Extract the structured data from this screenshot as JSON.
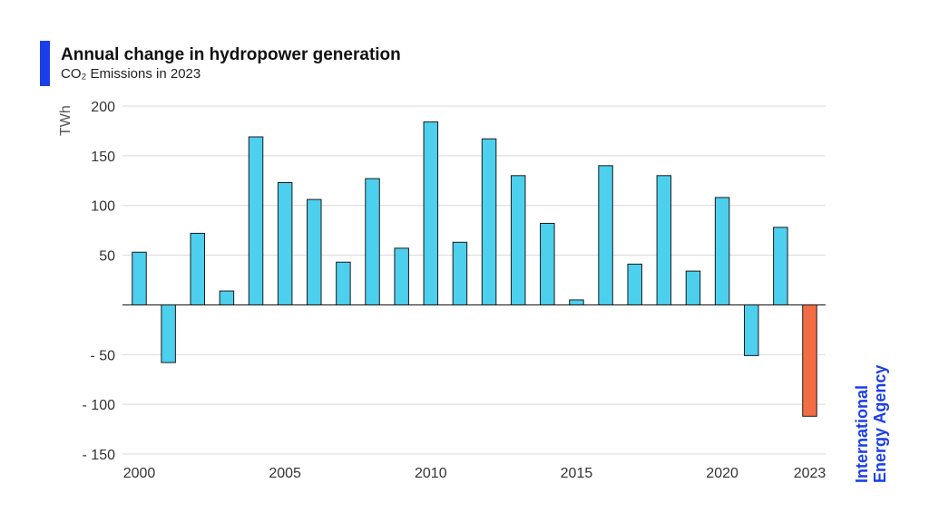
{
  "header": {
    "title": "Annual change in hydropower generation",
    "subtitle": "CO₂ Emissions in 2023"
  },
  "logo": {
    "line1": "International",
    "line2": "Energy Agency"
  },
  "colors": {
    "accent": "#1a3ee8",
    "bar": "#4dcfee",
    "highlight": "#f26d45",
    "bar_outline": "#1a1a1a",
    "grid": "#d9d9d9"
  },
  "chart_data": {
    "type": "bar",
    "title": "Annual change in hydropower generation",
    "subtitle": "CO₂ Emissions in 2023",
    "ylabel": "TWh",
    "xlabel": "",
    "ylim": [
      -150,
      200
    ],
    "yticks": [
      200,
      150,
      100,
      50,
      -50,
      -100,
      -150
    ],
    "ytick_labels": [
      "200",
      "150",
      "100",
      "50",
      "- 50",
      "- 100",
      "- 150"
    ],
    "xtick_labels": [
      "2000",
      "2005",
      "2010",
      "2015",
      "2020",
      "2023"
    ],
    "xtick_years": [
      2000,
      2005,
      2010,
      2015,
      2020,
      2023
    ],
    "grid": true,
    "highlight_category": "2023",
    "categories": [
      "2000",
      "2001",
      "2002",
      "2003",
      "2004",
      "2005",
      "2006",
      "2007",
      "2008",
      "2009",
      "2010",
      "2011",
      "2012",
      "2013",
      "2014",
      "2015",
      "2016",
      "2017",
      "2018",
      "2019",
      "2020",
      "2021",
      "2022",
      "2023"
    ],
    "values": [
      53,
      -58,
      72,
      14,
      169,
      123,
      106,
      43,
      127,
      57,
      184,
      63,
      167,
      130,
      82,
      5,
      140,
      41,
      130,
      34,
      108,
      -51,
      78,
      -112
    ]
  }
}
